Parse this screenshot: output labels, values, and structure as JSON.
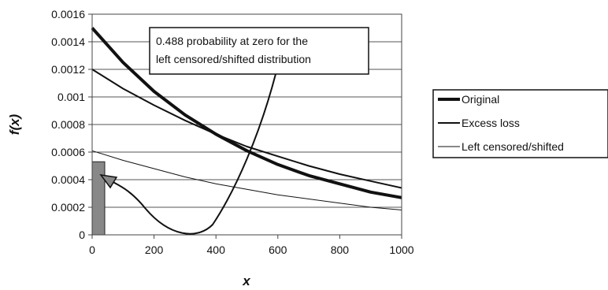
{
  "chart_data": {
    "type": "line",
    "title": "",
    "xlabel": "x",
    "ylabel": "f(x)",
    "xlim": [
      0,
      1000
    ],
    "ylim": [
      0,
      0.0016
    ],
    "x_ticks": [
      "0",
      "200",
      "400",
      "600",
      "800",
      "1000"
    ],
    "y_ticks": [
      "0",
      "0.0002",
      "0.0004",
      "0.0006",
      "0.0008",
      "0.001",
      "0.0012",
      "0.0014",
      "0.0016"
    ],
    "grid": "horizontal",
    "legend_position": "right",
    "series": [
      {
        "name": "Original",
        "color": "#111111",
        "x": [
          0,
          100,
          200,
          300,
          400,
          500,
          600,
          700,
          800,
          900,
          1000
        ],
        "y": [
          0.0015,
          0.00125,
          0.00104,
          0.00087,
          0.00073,
          0.00061,
          0.00051,
          0.00043,
          0.00037,
          0.00031,
          0.00027
        ]
      },
      {
        "name": "Excess loss",
        "color": "#111111",
        "x": [
          0,
          100,
          200,
          300,
          400,
          500,
          600,
          700,
          800,
          900,
          1000
        ],
        "y": [
          0.0012,
          0.00106,
          0.00094,
          0.00083,
          0.00073,
          0.00064,
          0.00057,
          0.0005,
          0.00044,
          0.00039,
          0.00034
        ]
      },
      {
        "name": "Left censored/shifted",
        "color": "#111111",
        "x": [
          0,
          100,
          200,
          300,
          400,
          500,
          600,
          700,
          800,
          900,
          1000
        ],
        "y": [
          0.00061,
          0.00054,
          0.00048,
          0.00042,
          0.00037,
          0.00033,
          0.00029,
          0.00026,
          0.00023,
          0.0002,
          0.00018
        ]
      }
    ],
    "point_mass": {
      "x": 0,
      "probability": 0.488,
      "bar_height": 0.00053,
      "color": "#888888"
    },
    "annotation": {
      "lines": [
        "0.488 probability at zero for the",
        "left censored/shifted distribution"
      ]
    }
  }
}
